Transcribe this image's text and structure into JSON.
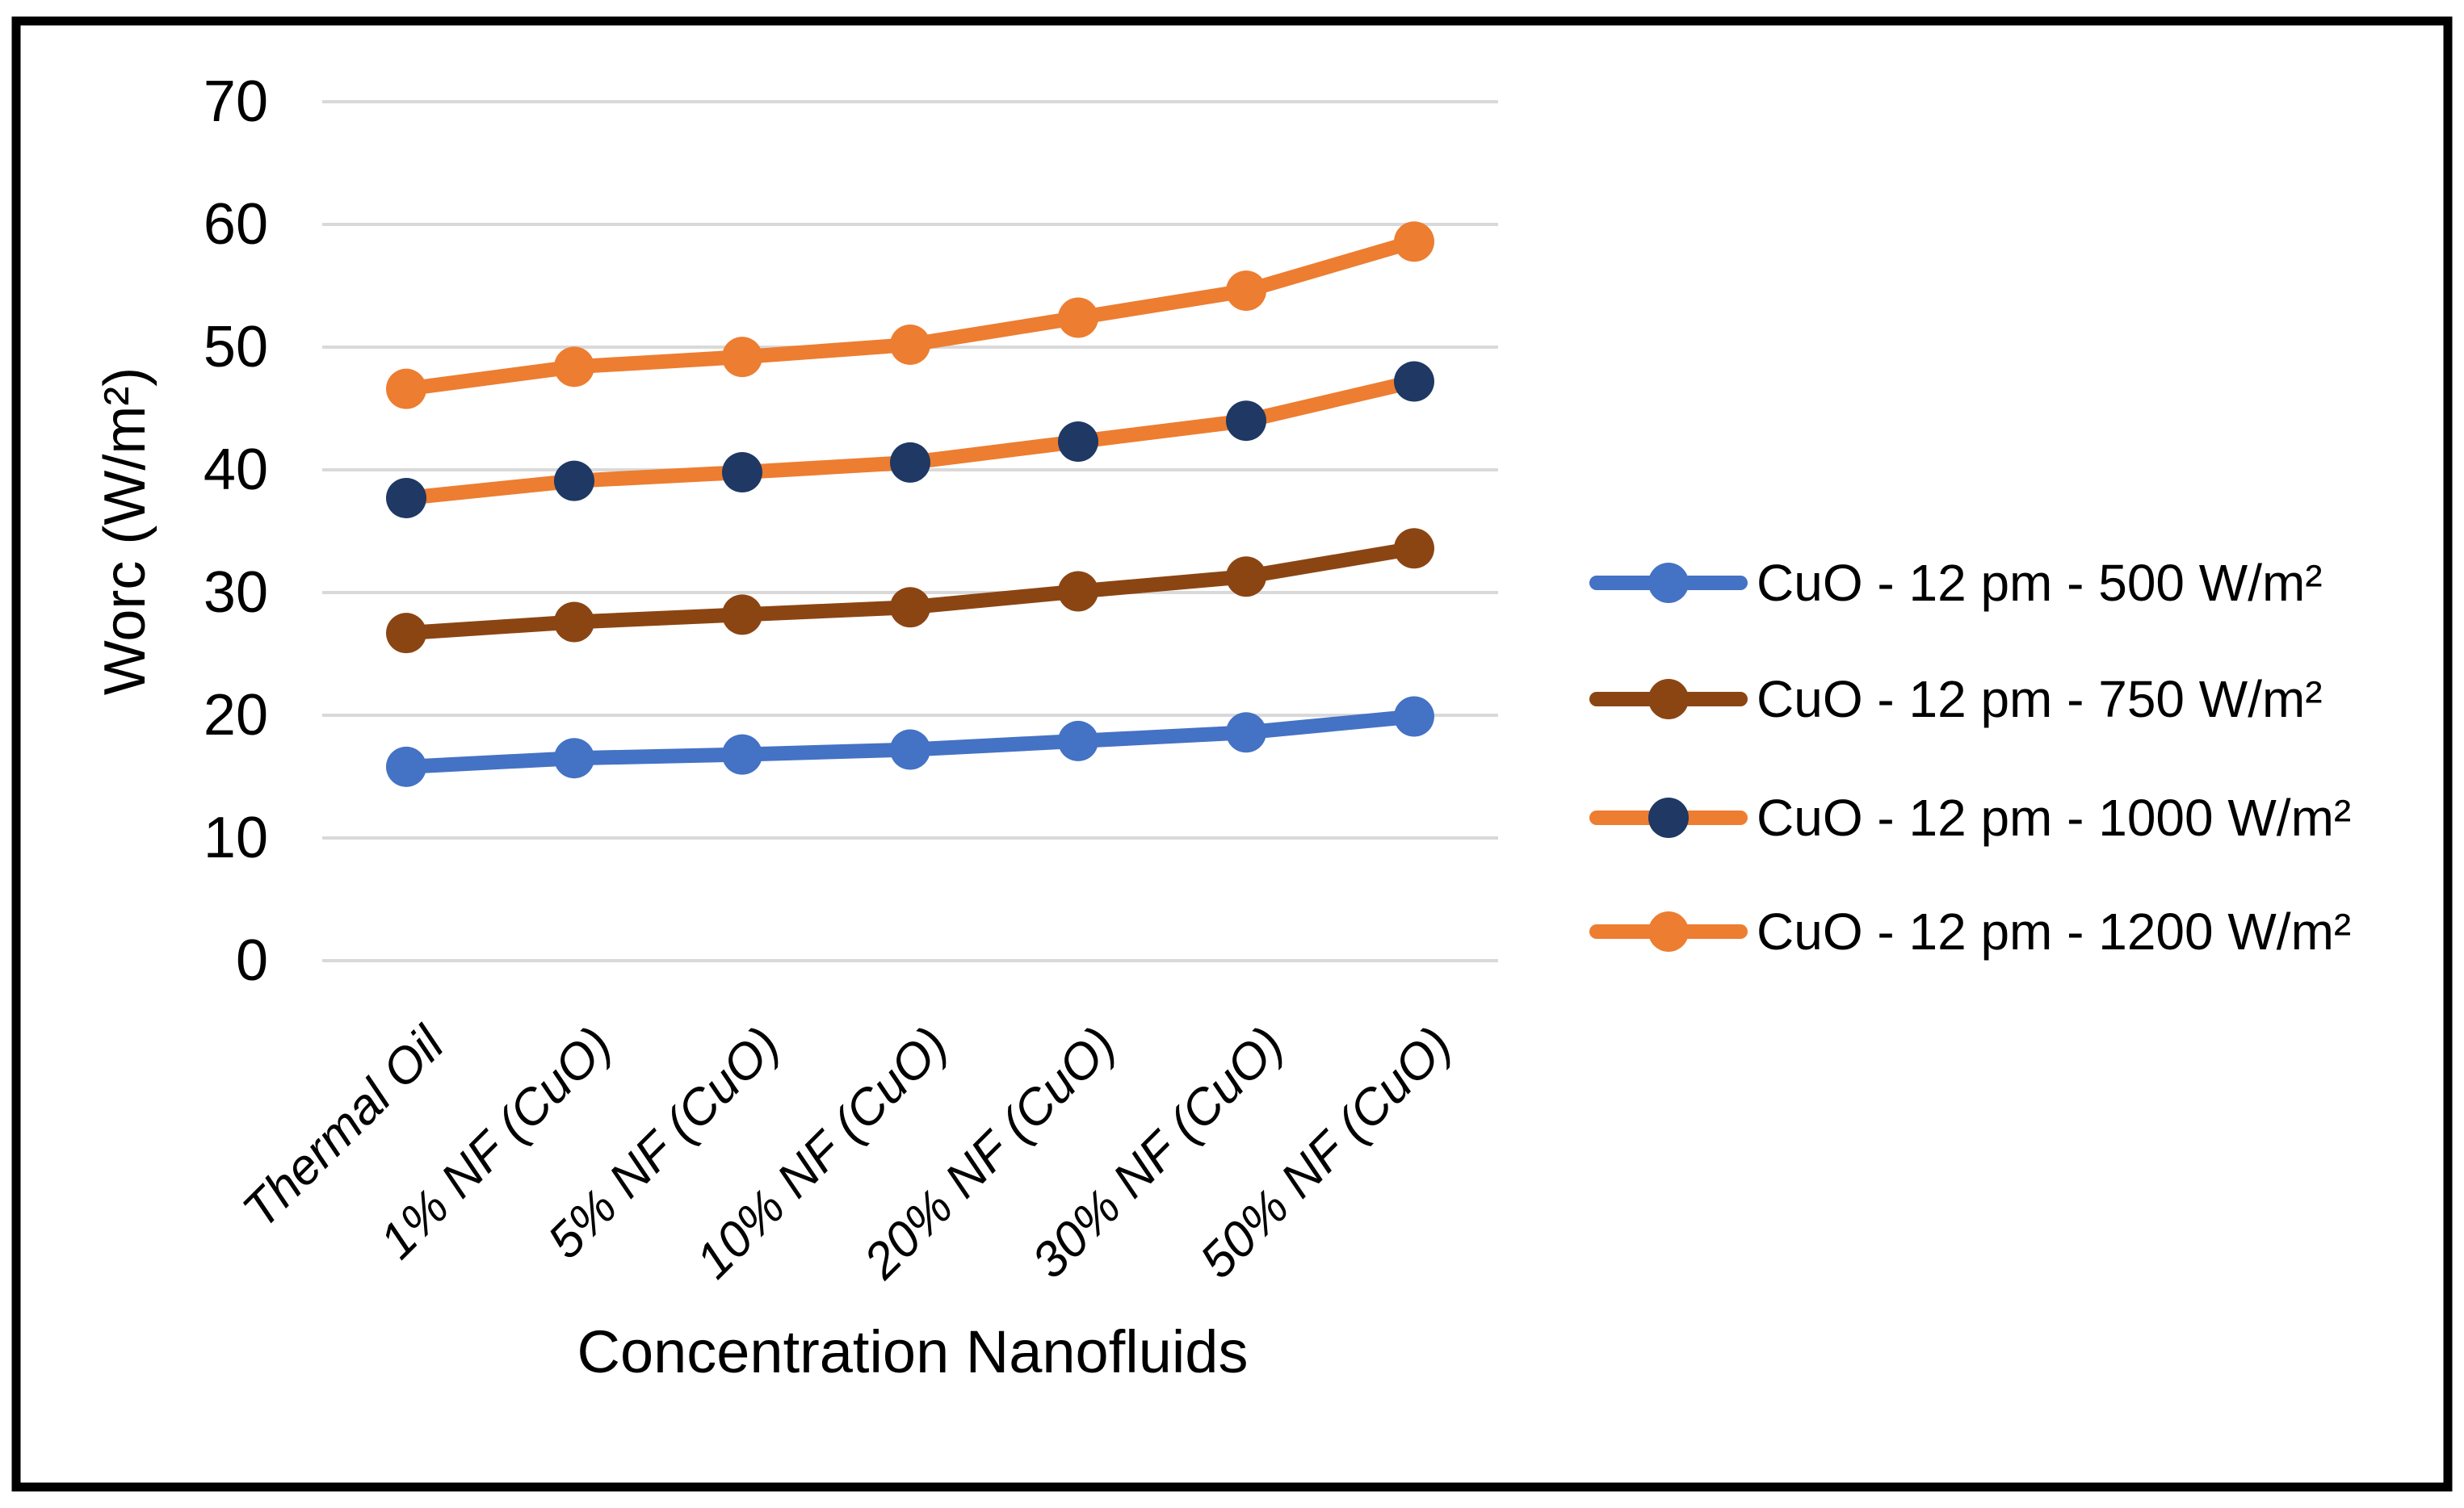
{
  "chart_data": {
    "type": "line",
    "title": "",
    "ylabel": "Worc (W/m²)",
    "xlabel": "Concentration Nanofluids",
    "ylim": [
      0,
      70
    ],
    "ytick_step": 10,
    "yticks": [
      "0",
      "10",
      "20",
      "30",
      "40",
      "50",
      "60",
      "70"
    ],
    "grid": true,
    "grid_color": "#D9D9D9",
    "legend_position": "right",
    "axis_text_color": "#000000",
    "border_color": "#000000",
    "categories": [
      "Thermal Oil",
      "1% NF (CuO)",
      "5% NF (CuO)",
      "10% NF (CuO)",
      "20% NF (CuO)",
      "30% NF (CuO)",
      "50% NF (CuO)"
    ],
    "series": [
      {
        "name": "CuO - 12 pm - 500 W/m²",
        "line_color": "#4472C4",
        "marker_color": "#4472C4",
        "values": [
          15.8,
          16.5,
          16.8,
          17.2,
          17.9,
          18.6,
          19.9
        ]
      },
      {
        "name": "CuO - 12 pm - 750 W/m²",
        "line_color": "#8B4513",
        "marker_color": "#8B4513",
        "values": [
          26.7,
          27.6,
          28.2,
          28.8,
          30.1,
          31.3,
          33.6
        ]
      },
      {
        "name": "CuO - 12 pm - 1000 W/m²",
        "line_color": "#ED7D31",
        "marker_color": "#1F3864",
        "values": [
          37.7,
          39.1,
          39.8,
          40.6,
          42.3,
          44.0,
          47.2
        ]
      },
      {
        "name": "CuO - 12 pm - 1200 W/m²",
        "line_color": "#ED7D31",
        "marker_color": "#ED7D31",
        "values": [
          46.6,
          48.4,
          49.2,
          50.2,
          52.4,
          54.6,
          58.6
        ]
      }
    ]
  }
}
